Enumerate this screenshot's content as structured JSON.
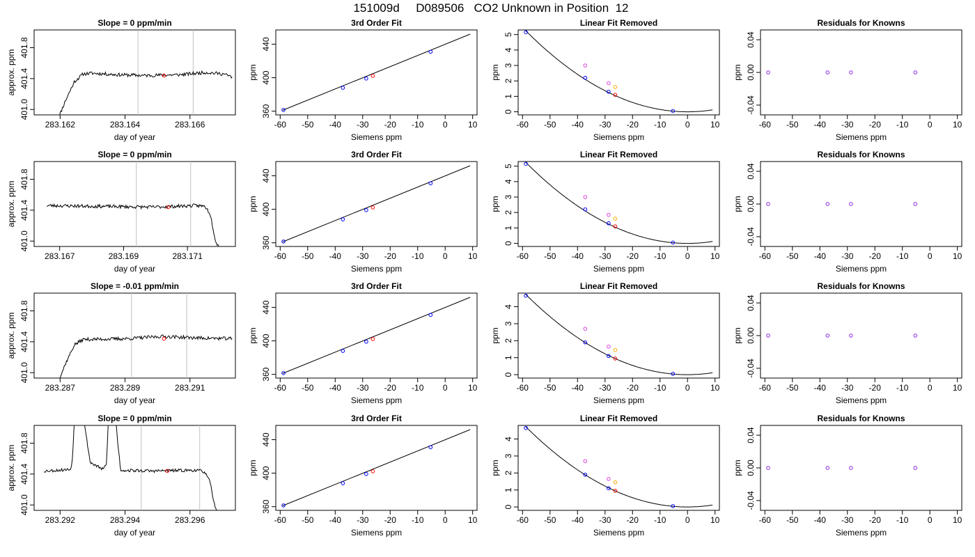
{
  "suptitle": "151009d     D089506   CO2 Unknown in Position  12",
  "colors": {
    "trace": "#000000",
    "known_point": "#0000ff",
    "unknown_point": "#ff0000",
    "magenta_point": "#dd44dd",
    "orange_point": "#ffaa00",
    "residual_point": "#8a2be2",
    "window_line": "#c0c0c0",
    "fit_line": "#000000"
  },
  "chart_data": [
    {
      "row": 1,
      "col": 1,
      "type": "line",
      "title": "Slope =  0  ppm/min",
      "xlabel": "day of year",
      "ylabel": "approx. ppm",
      "xlim": [
        283.1612,
        283.1674
      ],
      "ylim": [
        400.93,
        402.03
      ],
      "xticks": [
        283.162,
        283.164,
        283.166
      ],
      "xtick_labels": [
        "283.162",
        "283.164",
        "283.166"
      ],
      "yticks": [
        401.0,
        401.4,
        401.8
      ],
      "ytick_labels": [
        "401.0",
        "401.4",
        "401.8"
      ],
      "window_lines": [
        283.1644,
        283.1661
      ],
      "marker": {
        "x": 283.1652,
        "y": 401.44
      },
      "trace": {
        "x0": 283.1619,
        "x1": 283.1673,
        "points": [
          [
            0,
            400.84
          ],
          [
            0.05,
            401.12
          ],
          [
            0.1,
            401.36
          ],
          [
            0.15,
            401.46
          ],
          [
            0.2,
            401.47
          ],
          [
            0.35,
            401.45
          ],
          [
            0.5,
            401.44
          ],
          [
            0.7,
            401.45
          ],
          [
            0.85,
            401.48
          ],
          [
            0.95,
            401.46
          ],
          [
            1,
            401.42
          ]
        ],
        "noise": 0.022,
        "seed": 11
      }
    },
    {
      "row": 2,
      "col": 1,
      "type": "line",
      "title": "Slope =  0  ppm/min",
      "xlabel": "day of year",
      "ylabel": "approx. ppm",
      "xlim": [
        283.1662,
        283.1725
      ],
      "ylim": [
        400.93,
        402.03
      ],
      "xticks": [
        283.167,
        283.169,
        283.171
      ],
      "xtick_labels": [
        "283.167",
        "283.169",
        "283.171"
      ],
      "yticks": [
        401.0,
        401.4,
        401.8
      ],
      "ytick_labels": [
        "401.0",
        "401.4",
        "401.8"
      ],
      "window_lines": [
        283.1694,
        283.1711
      ],
      "marker": {
        "x": 283.1704,
        "y": 401.44
      },
      "trace": {
        "x0": 283.1666,
        "x1": 283.1721,
        "points": [
          [
            0,
            401.46
          ],
          [
            0.3,
            401.45
          ],
          [
            0.6,
            401.44
          ],
          [
            0.85,
            401.46
          ],
          [
            0.9,
            401.45
          ],
          [
            0.93,
            401.35
          ],
          [
            0.96,
            401.0
          ],
          [
            1,
            400.84
          ]
        ],
        "noise": 0.022,
        "seed": 23
      }
    },
    {
      "row": 3,
      "col": 1,
      "type": "line",
      "title": "Slope =  -0.01  ppm/min",
      "xlabel": "day of year",
      "ylabel": "approx. ppm",
      "xlim": [
        283.2862,
        283.2924
      ],
      "ylim": [
        400.93,
        402.03
      ],
      "xticks": [
        283.287,
        283.289,
        283.291
      ],
      "xtick_labels": [
        "283.287",
        "283.289",
        "283.291"
      ],
      "yticks": [
        401.0,
        401.4,
        401.8
      ],
      "ytick_labels": [
        "401.0",
        "401.4",
        "401.8"
      ],
      "window_lines": [
        283.2892,
        283.2909
      ],
      "marker": {
        "x": 283.2902,
        "y": 401.44
      },
      "trace": {
        "x0": 283.2869,
        "x1": 283.2923,
        "points": [
          [
            0,
            400.84
          ],
          [
            0.05,
            401.12
          ],
          [
            0.1,
            401.36
          ],
          [
            0.15,
            401.43
          ],
          [
            0.4,
            401.44
          ],
          [
            0.6,
            401.47
          ],
          [
            0.8,
            401.45
          ],
          [
            1,
            401.44
          ]
        ],
        "noise": 0.022,
        "seed": 37
      }
    },
    {
      "row": 4,
      "col": 1,
      "type": "line",
      "title": "Slope =  0  ppm/min",
      "xlabel": "day of year",
      "ylabel": "approx. ppm",
      "xlim": [
        283.2912,
        283.2974
      ],
      "ylim": [
        400.93,
        402.03
      ],
      "xticks": [
        283.292,
        283.294,
        283.296
      ],
      "xtick_labels": [
        "283.292",
        "283.294",
        "283.296"
      ],
      "yticks": [
        401.0,
        401.4,
        401.8
      ],
      "ytick_labels": [
        "401.0",
        "401.4",
        "401.8"
      ],
      "window_lines": [
        283.2945,
        283.2963
      ],
      "marker": {
        "x": 283.2953,
        "y": 401.44
      },
      "trace": {
        "x0": 283.2915,
        "x1": 283.297,
        "points": [
          [
            0,
            401.44
          ],
          [
            0.08,
            401.45
          ],
          [
            0.15,
            401.46
          ],
          [
            0.16,
            401.6
          ],
          [
            0.18,
            402.5
          ],
          [
            0.2,
            402.5
          ],
          [
            0.23,
            402.0
          ],
          [
            0.26,
            401.55
          ],
          [
            0.3,
            401.5
          ],
          [
            0.33,
            401.46
          ],
          [
            0.35,
            401.52
          ],
          [
            0.37,
            402.5
          ],
          [
            0.39,
            402.5
          ],
          [
            0.41,
            401.9
          ],
          [
            0.43,
            401.45
          ],
          [
            0.6,
            401.44
          ],
          [
            0.85,
            401.45
          ],
          [
            0.9,
            401.43
          ],
          [
            0.93,
            401.3
          ],
          [
            0.96,
            400.95
          ],
          [
            1,
            400.84
          ]
        ],
        "noise": 0.02,
        "seed": 53
      }
    },
    {
      "row": 1,
      "col": 2,
      "type": "scatter",
      "title": "3rd Order Fit",
      "xlabel": "Siemens ppm",
      "ylabel": "ppm",
      "xlim": [
        -61.6,
        11.6
      ],
      "ylim": [
        355.6,
        457
      ],
      "xticks": [
        -60,
        -50,
        -40,
        -30,
        -20,
        -10,
        0,
        10
      ],
      "yticks": [
        360,
        400,
        440
      ],
      "line": {
        "x": [
          -59.1,
          9.1
        ],
        "y": [
          361.1,
          452.0
        ]
      },
      "known_points": [
        {
          "x": -58.8,
          "y": 361.5
        },
        {
          "x": -37.2,
          "y": 388.0
        },
        {
          "x": -28.7,
          "y": 399.0
        },
        {
          "x": -5.3,
          "y": 431.0
        }
      ],
      "unknown_point": {
        "x": -26.3,
        "y": 402.2
      }
    },
    {
      "row": 2,
      "col": 2,
      "type": "scatter",
      "title": "3rd Order Fit",
      "xlabel": "Siemens ppm",
      "ylabel": "ppm",
      "xlim": [
        -61.6,
        11.6
      ],
      "ylim": [
        355.6,
        457
      ],
      "xticks": [
        -60,
        -50,
        -40,
        -30,
        -20,
        -10,
        0,
        10
      ],
      "yticks": [
        360,
        400,
        440
      ],
      "line": {
        "x": [
          -59.1,
          9.1
        ],
        "y": [
          361.1,
          452.0
        ]
      },
      "known_points": [
        {
          "x": -58.8,
          "y": 361.5
        },
        {
          "x": -37.2,
          "y": 388.0
        },
        {
          "x": -28.7,
          "y": 399.0
        },
        {
          "x": -5.3,
          "y": 431.0
        }
      ],
      "unknown_point": {
        "x": -26.3,
        "y": 402.2
      }
    },
    {
      "row": 3,
      "col": 2,
      "type": "scatter",
      "title": "3rd Order Fit",
      "xlabel": "Siemens ppm",
      "ylabel": "ppm",
      "xlim": [
        -61.6,
        11.6
      ],
      "ylim": [
        355.6,
        457
      ],
      "xticks": [
        -60,
        -50,
        -40,
        -30,
        -20,
        -10,
        0,
        10
      ],
      "yticks": [
        360,
        400,
        440
      ],
      "line": {
        "x": [
          -59.1,
          9.1
        ],
        "y": [
          361.1,
          452.0
        ]
      },
      "known_points": [
        {
          "x": -58.8,
          "y": 361.5
        },
        {
          "x": -37.2,
          "y": 388.0
        },
        {
          "x": -28.7,
          "y": 399.0
        },
        {
          "x": -5.3,
          "y": 431.0
        }
      ],
      "unknown_point": {
        "x": -26.3,
        "y": 402.2
      }
    },
    {
      "row": 4,
      "col": 2,
      "type": "scatter",
      "title": "3rd Order Fit",
      "xlabel": "Siemens ppm",
      "ylabel": "ppm",
      "xlim": [
        -61.6,
        11.6
      ],
      "ylim": [
        355.6,
        457
      ],
      "xticks": [
        -60,
        -50,
        -40,
        -30,
        -20,
        -10,
        0,
        10
      ],
      "yticks": [
        360,
        400,
        440
      ],
      "line": {
        "x": [
          -59.1,
          9.1
        ],
        "y": [
          361.1,
          452.0
        ]
      },
      "known_points": [
        {
          "x": -58.8,
          "y": 361.5
        },
        {
          "x": -37.2,
          "y": 388.0
        },
        {
          "x": -28.7,
          "y": 399.0
        },
        {
          "x": -5.3,
          "y": 431.0
        }
      ],
      "unknown_point": {
        "x": -26.3,
        "y": 402.2
      }
    },
    {
      "row": 1,
      "col": 3,
      "type": "scatter",
      "title": "Linear Fit Removed",
      "xlabel": "Siemens ppm",
      "ylabel": "ppm",
      "xlim": [
        -61.6,
        11.6
      ],
      "ylim": [
        -0.2,
        5.3
      ],
      "xticks": [
        -60,
        -50,
        -40,
        -30,
        -20,
        -10,
        0,
        10
      ],
      "yticks": [
        0,
        1,
        2,
        3,
        4,
        5
      ],
      "curve": {
        "x_range": [
          -58.8,
          9.1
        ],
        "a": 0.001516,
        "h": 0.0
      },
      "known_points": [
        {
          "x": -58.8,
          "y": 5.15
        },
        {
          "x": -37.2,
          "y": 2.2
        },
        {
          "x": -28.7,
          "y": 1.3
        },
        {
          "x": -5.3,
          "y": 0.05
        }
      ],
      "unknown_point": {
        "x": -26.3,
        "y": 1.1
      },
      "magenta_points": [
        {
          "x": -37.2,
          "y": 3.0
        },
        {
          "x": -28.7,
          "y": 1.85
        }
      ],
      "orange_point": {
        "x": -26.3,
        "y": 1.6
      }
    },
    {
      "row": 2,
      "col": 3,
      "type": "scatter",
      "title": "Linear Fit Removed",
      "xlabel": "Siemens ppm",
      "ylabel": "ppm",
      "xlim": [
        -61.6,
        11.6
      ],
      "ylim": [
        -0.2,
        5.3
      ],
      "xticks": [
        -60,
        -50,
        -40,
        -30,
        -20,
        -10,
        0,
        10
      ],
      "yticks": [
        0,
        1,
        2,
        3,
        4,
        5
      ],
      "curve": {
        "x_range": [
          -58.8,
          9.1
        ],
        "a": 0.001516,
        "h": 0.0
      },
      "known_points": [
        {
          "x": -58.8,
          "y": 5.15
        },
        {
          "x": -37.2,
          "y": 2.2
        },
        {
          "x": -28.7,
          "y": 1.3
        },
        {
          "x": -5.3,
          "y": 0.05
        }
      ],
      "unknown_point": {
        "x": -26.3,
        "y": 1.1
      },
      "magenta_points": [
        {
          "x": -37.2,
          "y": 3.0
        },
        {
          "x": -28.7,
          "y": 1.85
        }
      ],
      "orange_point": {
        "x": -26.3,
        "y": 1.6
      }
    },
    {
      "row": 3,
      "col": 3,
      "type": "scatter",
      "title": "Linear Fit Removed",
      "xlabel": "Siemens ppm",
      "ylabel": "ppm",
      "xlim": [
        -61.6,
        11.6
      ],
      "ylim": [
        -0.2,
        4.8
      ],
      "xticks": [
        -60,
        -50,
        -40,
        -30,
        -20,
        -10,
        0,
        10
      ],
      "yticks": [
        0,
        1,
        2,
        3,
        4
      ],
      "curve": {
        "x_range": [
          -58.8,
          9.1
        ],
        "a": 0.001365,
        "h": 0.0
      },
      "known_points": [
        {
          "x": -58.8,
          "y": 4.65
        },
        {
          "x": -37.2,
          "y": 1.9
        },
        {
          "x": -28.7,
          "y": 1.1
        },
        {
          "x": -5.3,
          "y": 0.05
        }
      ],
      "unknown_point": {
        "x": -26.3,
        "y": 0.95
      },
      "magenta_points": [
        {
          "x": -37.2,
          "y": 2.7
        },
        {
          "x": -28.7,
          "y": 1.65
        }
      ],
      "orange_point": {
        "x": -26.3,
        "y": 1.45
      }
    },
    {
      "row": 4,
      "col": 3,
      "type": "scatter",
      "title": "Linear Fit Removed",
      "xlabel": "Siemens ppm",
      "ylabel": "ppm",
      "xlim": [
        -61.6,
        11.6
      ],
      "ylim": [
        -0.2,
        4.8
      ],
      "xticks": [
        -60,
        -50,
        -40,
        -30,
        -20,
        -10,
        0,
        10
      ],
      "yticks": [
        0,
        1,
        2,
        3,
        4
      ],
      "curve": {
        "x_range": [
          -58.8,
          9.1
        ],
        "a": 0.001365,
        "h": 0.0
      },
      "known_points": [
        {
          "x": -58.8,
          "y": 4.65
        },
        {
          "x": -37.2,
          "y": 1.9
        },
        {
          "x": -28.7,
          "y": 1.1
        },
        {
          "x": -5.3,
          "y": 0.05
        }
      ],
      "unknown_point": {
        "x": -26.3,
        "y": 0.95
      },
      "magenta_points": [
        {
          "x": -37.2,
          "y": 2.7
        },
        {
          "x": -28.7,
          "y": 1.65
        }
      ],
      "orange_point": {
        "x": -26.3,
        "y": 1.45
      }
    },
    {
      "row": 1,
      "col": 4,
      "type": "scatter",
      "title": "Residuals for Knowns",
      "xlabel": "Siemens ppm",
      "ylabel": "ppm",
      "xlim": [
        -61.6,
        11.6
      ],
      "ylim": [
        -0.052,
        0.052
      ],
      "xticks": [
        -60,
        -50,
        -40,
        -30,
        -20,
        -10,
        0,
        10
      ],
      "yticks": [
        -0.04,
        0.0,
        0.04
      ],
      "ytick_labels": [
        "-0.04",
        "0.00",
        "0.04"
      ],
      "residual_points": [
        {
          "x": -58.8,
          "y": 0.0
        },
        {
          "x": -37.2,
          "y": 0.0
        },
        {
          "x": -28.7,
          "y": 0.0
        },
        {
          "x": -5.3,
          "y": 0.0
        }
      ]
    },
    {
      "row": 2,
      "col": 4,
      "type": "scatter",
      "title": "Residuals for Knowns",
      "xlabel": "Siemens ppm",
      "ylabel": "ppm",
      "xlim": [
        -61.6,
        11.6
      ],
      "ylim": [
        -0.052,
        0.052
      ],
      "xticks": [
        -60,
        -50,
        -40,
        -30,
        -20,
        -10,
        0,
        10
      ],
      "yticks": [
        -0.04,
        0.0,
        0.04
      ],
      "ytick_labels": [
        "-0.04",
        "0.00",
        "0.04"
      ],
      "residual_points": [
        {
          "x": -58.8,
          "y": 0.0
        },
        {
          "x": -37.2,
          "y": 0.0
        },
        {
          "x": -28.7,
          "y": 0.0
        },
        {
          "x": -5.3,
          "y": 0.0
        }
      ]
    },
    {
      "row": 3,
      "col": 4,
      "type": "scatter",
      "title": "Residuals for Knowns",
      "xlabel": "Siemens ppm",
      "ylabel": "ppm",
      "xlim": [
        -61.6,
        11.6
      ],
      "ylim": [
        -0.052,
        0.052
      ],
      "xticks": [
        -60,
        -50,
        -40,
        -30,
        -20,
        -10,
        0,
        10
      ],
      "yticks": [
        -0.04,
        0.0,
        0.04
      ],
      "ytick_labels": [
        "-0.04",
        "0.00",
        "0.04"
      ],
      "residual_points": [
        {
          "x": -58.8,
          "y": 0.0
        },
        {
          "x": -37.2,
          "y": 0.0
        },
        {
          "x": -28.7,
          "y": 0.0
        },
        {
          "x": -5.3,
          "y": 0.0
        }
      ]
    },
    {
      "row": 4,
      "col": 4,
      "type": "scatter",
      "title": "Residuals for Knowns",
      "xlabel": "Siemens ppm",
      "ylabel": "ppm",
      "xlim": [
        -61.6,
        11.6
      ],
      "ylim": [
        -0.052,
        0.052
      ],
      "xticks": [
        -60,
        -50,
        -40,
        -30,
        -20,
        -10,
        0,
        10
      ],
      "yticks": [
        -0.04,
        0.0,
        0.04
      ],
      "ytick_labels": [
        "-0.04",
        "0.00",
        "0.04"
      ],
      "residual_points": [
        {
          "x": -58.8,
          "y": 0.0
        },
        {
          "x": -37.2,
          "y": 0.0
        },
        {
          "x": -28.7,
          "y": 0.0
        },
        {
          "x": -5.3,
          "y": 0.0
        }
      ]
    }
  ]
}
